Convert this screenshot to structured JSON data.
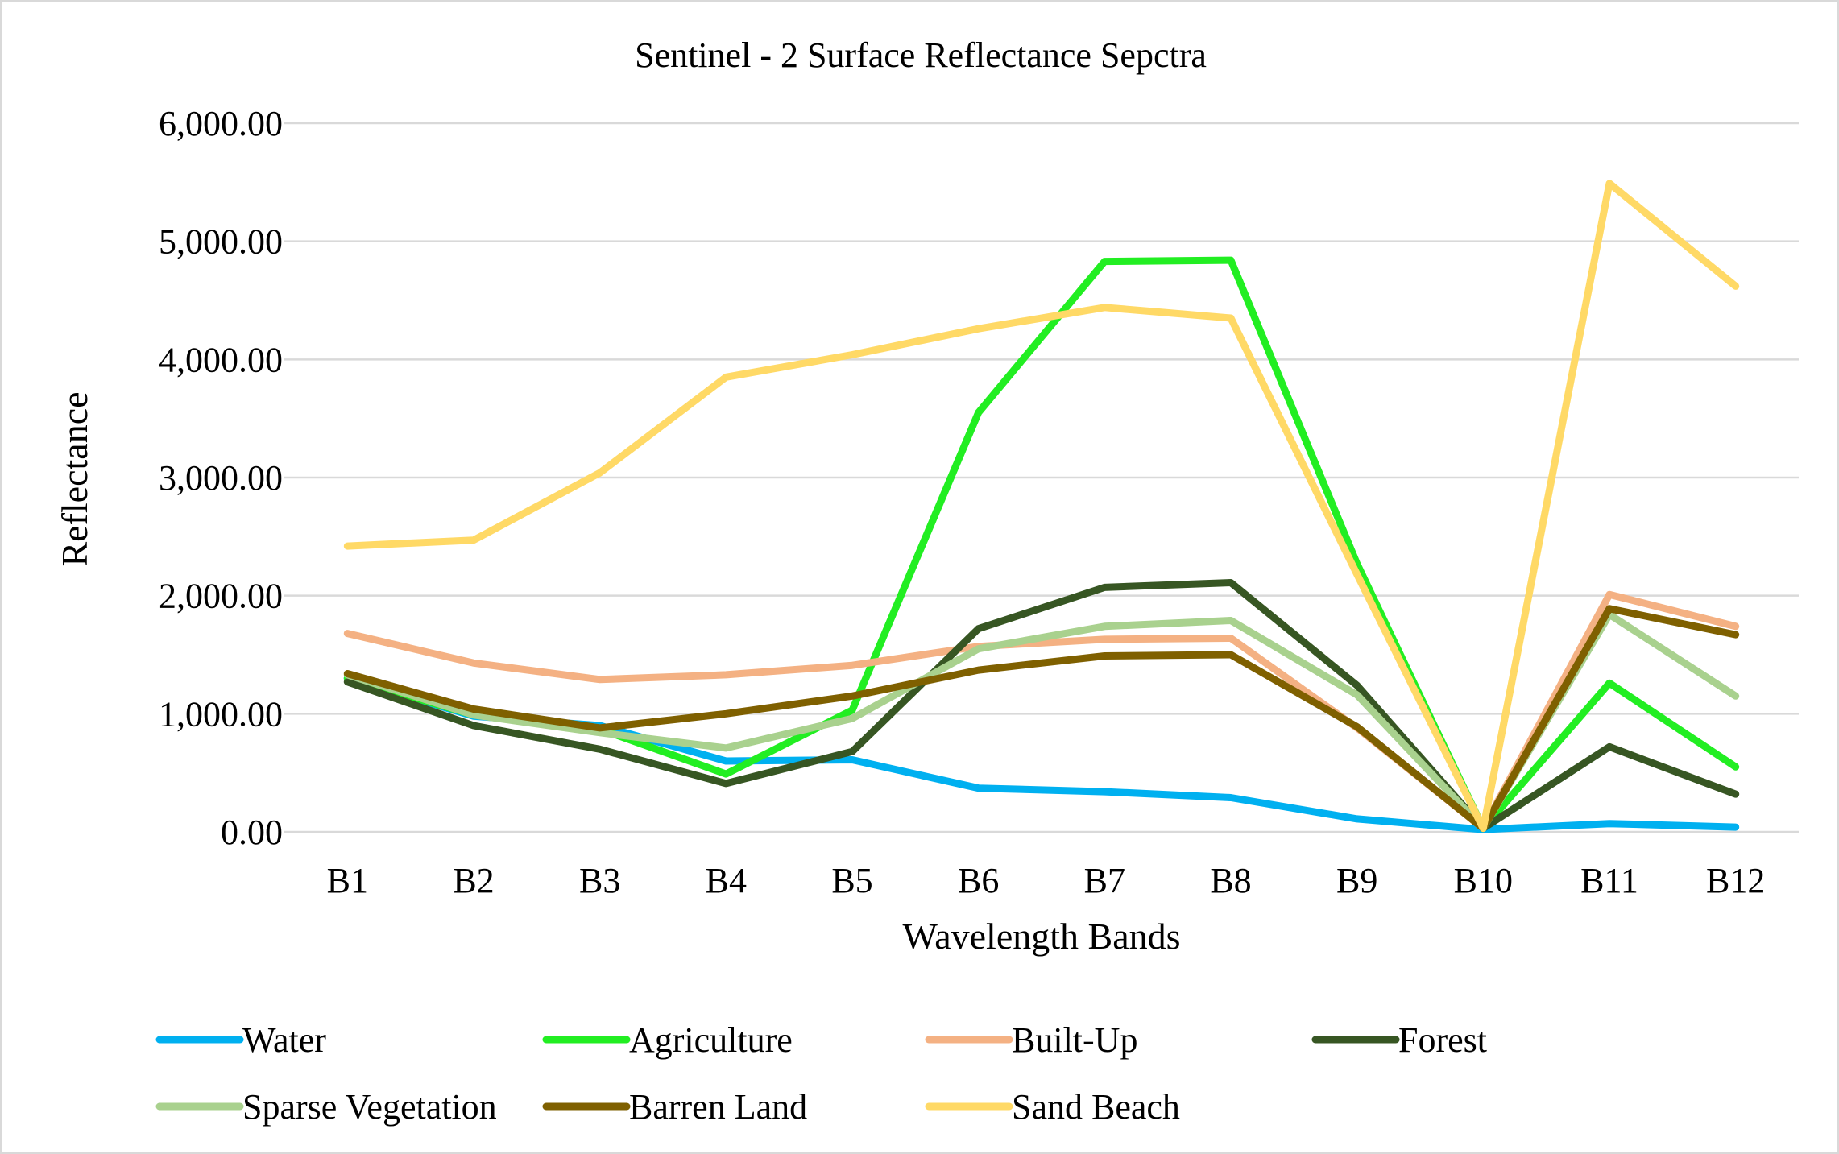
{
  "chart_data": {
    "type": "line",
    "title": "Sentinel - 2 Surface Reflectance Sepctra",
    "xlabel": "Wavelength Bands",
    "ylabel": "Reflectance",
    "categories": [
      "B1",
      "B2",
      "B3",
      "B4",
      "B5",
      "B6",
      "B7",
      "B8",
      "B9",
      "B10",
      "B11",
      "B12"
    ],
    "ylim": [
      0,
      6000
    ],
    "yticks": [
      0,
      1000,
      2000,
      3000,
      4000,
      5000,
      6000
    ],
    "ytick_labels": [
      "0.00",
      "1,000.00",
      "2,000.00",
      "3,000.00",
      "4,000.00",
      "5,000.00",
      "6,000.00"
    ],
    "grid": true,
    "legend_position": "bottom",
    "series": [
      {
        "name": "Water",
        "color": "#00b0f0",
        "values": [
          1300,
          980,
          900,
          600,
          610,
          370,
          340,
          290,
          110,
          20,
          70,
          40
        ]
      },
      {
        "name": "Agriculture",
        "color": "#22ee22",
        "values": [
          1300,
          990,
          870,
          490,
          1030,
          3550,
          4830,
          4840,
          2270,
          30,
          1260,
          550
        ]
      },
      {
        "name": "Built-Up",
        "color": "#f4b183",
        "values": [
          1680,
          1430,
          1290,
          1330,
          1410,
          1570,
          1630,
          1640,
          880,
          30,
          2010,
          1740
        ]
      },
      {
        "name": "Forest",
        "color": "#375623",
        "values": [
          1270,
          900,
          700,
          410,
          680,
          1720,
          2070,
          2110,
          1240,
          30,
          720,
          320
        ]
      },
      {
        "name": "Sparse Vegetation",
        "color": "#a9d18e",
        "values": [
          1330,
          990,
          840,
          710,
          960,
          1550,
          1740,
          1790,
          1160,
          30,
          1840,
          1150
        ]
      },
      {
        "name": "Barren Land",
        "color": "#7f6000",
        "values": [
          1340,
          1040,
          880,
          1000,
          1150,
          1370,
          1490,
          1500,
          890,
          30,
          1890,
          1670
        ]
      },
      {
        "name": "Sand Beach",
        "color": "#ffd966",
        "values": [
          2420,
          2470,
          3040,
          3850,
          4040,
          4260,
          4440,
          4350,
          2180,
          30,
          5490,
          4620
        ]
      }
    ]
  }
}
